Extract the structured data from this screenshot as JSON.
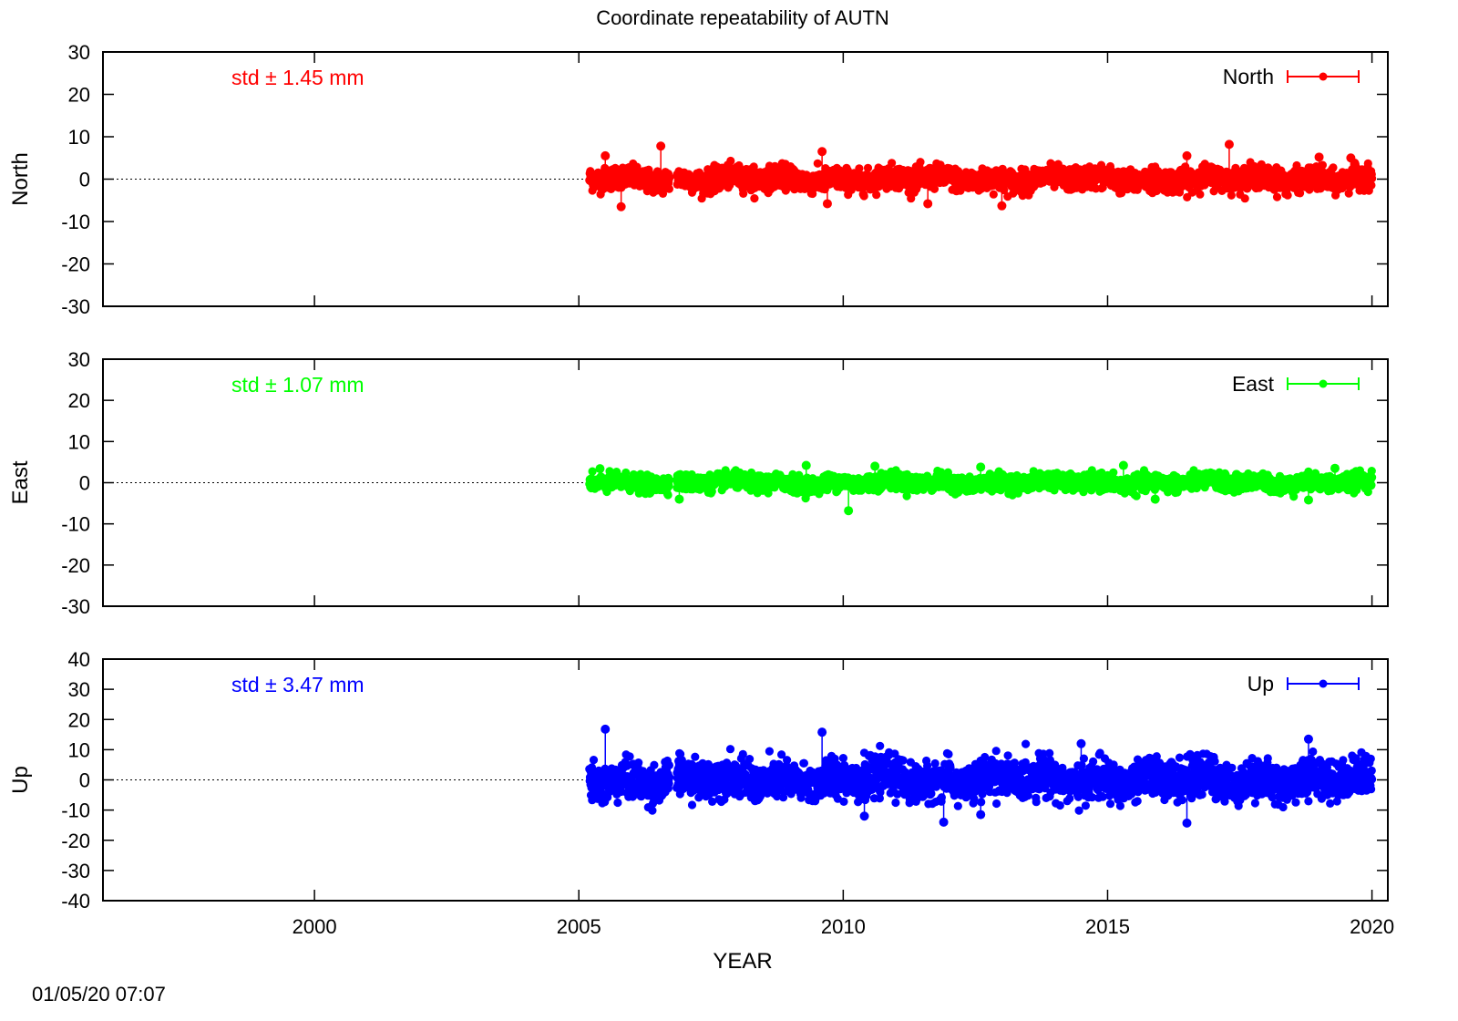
{
  "footer_timestamp": "01/05/20 07:07",
  "chart_data": {
    "type": "scatter",
    "title": "Coordinate repeatability of AUTN",
    "xlabel": "YEAR",
    "x_ticks": [
      2000,
      2005,
      2010,
      2015,
      2020
    ],
    "xlim": [
      1996,
      2020.3
    ],
    "panels": [
      {
        "name": "North",
        "ylabel": "North",
        "ylim": [
          -30,
          30
        ],
        "y_ticks": [
          30,
          20,
          10,
          0,
          -10,
          -20,
          -30
        ],
        "color": "#ff0000",
        "std_label": "std ± 1.45 mm",
        "legend": "North",
        "legend_position": "top-right",
        "zero_line": true,
        "series": {
          "x_range": [
            2005.2,
            2020.0
          ],
          "typical_spread_mm": 1.45,
          "envelope_mm": [
            -6.5,
            8.3
          ],
          "spikes": [
            [
              2005.5,
              5.5
            ],
            [
              2005.8,
              -6.5
            ],
            [
              2006.55,
              7.8
            ],
            [
              2009.6,
              6.5
            ],
            [
              2009.7,
              -5.8
            ],
            [
              2011.6,
              -5.8
            ],
            [
              2013.0,
              -6.3
            ],
            [
              2016.5,
              5.5
            ],
            [
              2017.3,
              8.2
            ],
            [
              2019.0,
              5.2
            ],
            [
              2019.6,
              5.0
            ]
          ]
        }
      },
      {
        "name": "East",
        "ylabel": "East",
        "ylim": [
          -30,
          30
        ],
        "y_ticks": [
          30,
          20,
          10,
          0,
          -10,
          -20,
          -30
        ],
        "color": "#00ff00",
        "std_label": "std ± 1.07 mm",
        "legend": "East",
        "legend_position": "top-right",
        "zero_line": true,
        "series": {
          "x_range": [
            2005.2,
            2020.0
          ],
          "typical_spread_mm": 1.07,
          "envelope_mm": [
            -6.8,
            4.3
          ],
          "spikes": [
            [
              2005.4,
              3.4
            ],
            [
              2006.9,
              -4.0
            ],
            [
              2009.3,
              4.2
            ],
            [
              2010.1,
              -6.8
            ],
            [
              2010.6,
              4.0
            ],
            [
              2012.6,
              3.8
            ],
            [
              2015.3,
              4.2
            ],
            [
              2015.9,
              -4.0
            ],
            [
              2019.3,
              3.5
            ],
            [
              2018.8,
              -4.2
            ]
          ]
        }
      },
      {
        "name": "Up",
        "ylabel": "Up",
        "ylim": [
          -40,
          40
        ],
        "y_ticks": [
          40,
          30,
          20,
          10,
          0,
          -10,
          -20,
          -30,
          -40
        ],
        "color": "#0000ff",
        "std_label": "std ± 3.47 mm",
        "legend": "Up",
        "legend_position": "top-right",
        "zero_line": true,
        "series": {
          "x_range": [
            2005.2,
            2020.0
          ],
          "typical_spread_mm": 3.47,
          "envelope_mm": [
            -14.5,
            17.0
          ],
          "spikes": [
            [
              2005.5,
              16.8
            ],
            [
              2009.6,
              15.8
            ],
            [
              2010.4,
              -12.0
            ],
            [
              2011.9,
              -14.0
            ],
            [
              2012.6,
              -11.5
            ],
            [
              2014.5,
              12.0
            ],
            [
              2016.5,
              -14.3
            ],
            [
              2018.8,
              13.5
            ],
            [
              2005.3,
              -6.0
            ]
          ]
        }
      }
    ]
  }
}
